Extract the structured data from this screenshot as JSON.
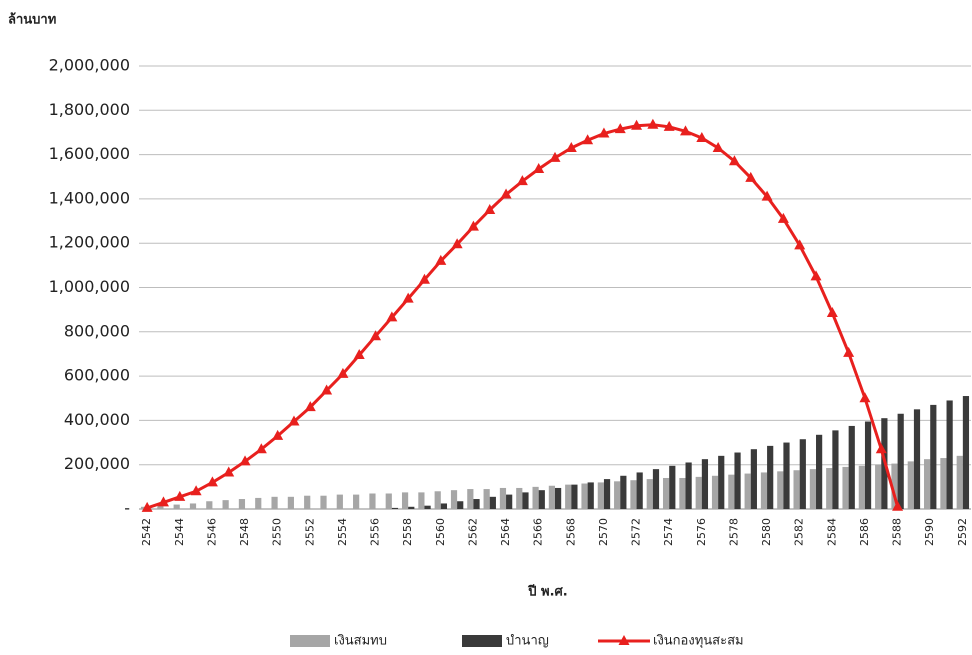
{
  "chart_data": {
    "type": "bar-line",
    "y_axis_title": "ล้านบาท",
    "x_axis_title": "ปี พ.ศ.",
    "categories": [
      "2542",
      null,
      "2544",
      null,
      "2546",
      null,
      "2548",
      null,
      "2550",
      null,
      "2552",
      null,
      "2554",
      null,
      "2556",
      null,
      "2558",
      null,
      "2560",
      null,
      "2562",
      null,
      "2564",
      null,
      "2566",
      null,
      "2568",
      null,
      "2570",
      null,
      "2572",
      null,
      "2574",
      null,
      "2576",
      null,
      "2578",
      null,
      "2580",
      null,
      "2582",
      null,
      "2584",
      null,
      "2586",
      null,
      "2588",
      null,
      "2590",
      null,
      "2592"
    ],
    "ylim": [
      0,
      2000000
    ],
    "yticks": [
      {
        "value": 0,
        "label": "-"
      },
      {
        "value": 200000,
        "label": "200,000"
      },
      {
        "value": 400000,
        "label": "400,000"
      },
      {
        "value": 600000,
        "label": "600,000"
      },
      {
        "value": 800000,
        "label": "800,000"
      },
      {
        "value": 1000000,
        "label": "1,000,000"
      },
      {
        "value": 1200000,
        "label": "1,200,000"
      },
      {
        "value": 1400000,
        "label": "1,400,000"
      },
      {
        "value": 1600000,
        "label": "1,600,000"
      },
      {
        "value": 1800000,
        "label": "1,800,000"
      },
      {
        "value": 2000000,
        "label": "2,000,000"
      }
    ],
    "grid": true,
    "legend": "bottom",
    "series": [
      {
        "name": "เงินสมทบ",
        "kind": "bar",
        "color": "#a6a6a6",
        "values": [
          10000,
          15000,
          20000,
          25000,
          35000,
          40000,
          45000,
          50000,
          55000,
          55000,
          60000,
          60000,
          65000,
          65000,
          70000,
          70000,
          75000,
          75000,
          80000,
          85000,
          90000,
          90000,
          95000,
          95000,
          100000,
          105000,
          110000,
          115000,
          120000,
          125000,
          130000,
          135000,
          140000,
          140000,
          145000,
          150000,
          155000,
          160000,
          165000,
          170000,
          175000,
          180000,
          185000,
          190000,
          195000,
          200000,
          205000,
          215000,
          225000,
          230000,
          240000
        ]
      },
      {
        "name": "บำนาญ",
        "kind": "bar",
        "color": "#3a3a3a",
        "values": [
          0,
          0,
          0,
          0,
          0,
          0,
          0,
          0,
          0,
          0,
          0,
          0,
          0,
          0,
          0,
          5000,
          10000,
          15000,
          25000,
          35000,
          45000,
          55000,
          65000,
          75000,
          85000,
          95000,
          110000,
          120000,
          135000,
          150000,
          165000,
          180000,
          195000,
          210000,
          225000,
          240000,
          255000,
          270000,
          285000,
          300000,
          315000,
          335000,
          355000,
          375000,
          395000,
          410000,
          430000,
          450000,
          470000,
          490000,
          510000
        ]
      },
      {
        "name": "เงินกองทุนสะสม",
        "kind": "line",
        "color": "#e8201e",
        "values": [
          5000,
          30000,
          55000,
          80000,
          120000,
          165000,
          215000,
          270000,
          330000,
          395000,
          460000,
          535000,
          610000,
          695000,
          780000,
          865000,
          950000,
          1035000,
          1120000,
          1195000,
          1275000,
          1350000,
          1420000,
          1480000,
          1535000,
          1585000,
          1630000,
          1665000,
          1695000,
          1715000,
          1730000,
          1735000,
          1725000,
          1705000,
          1675000,
          1630000,
          1570000,
          1495000,
          1410000,
          1310000,
          1190000,
          1050000,
          885000,
          705000,
          500000,
          270000,
          10000,
          null,
          null,
          null,
          null
        ]
      }
    ]
  }
}
